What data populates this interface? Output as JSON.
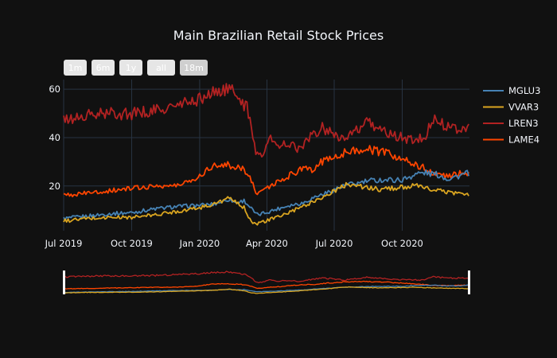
{
  "chart_data": {
    "type": "line",
    "title": "Main Brazilian Retail Stock Prices",
    "xlabel": "",
    "ylabel": "",
    "xlim": [
      "2019-07-01",
      "2020-12-31"
    ],
    "ylim": [
      1.5,
      64
    ],
    "yticks": [
      20,
      40,
      60
    ],
    "xticks": [
      {
        "date": "2019-07-01",
        "label": "Jul 2019"
      },
      {
        "date": "2019-10-01",
        "label": "Oct 2019"
      },
      {
        "date": "2020-01-01",
        "label": "Jan 2020"
      },
      {
        "date": "2020-04-01",
        "label": "Apr 2020"
      },
      {
        "date": "2020-07-01",
        "label": "Jul 2020"
      },
      {
        "date": "2020-10-01",
        "label": "Oct 2020"
      }
    ],
    "grid": true,
    "legend_position": "right",
    "range_selector": {
      "buttons": [
        "1m",
        "6m",
        "1y",
        "all",
        "18m"
      ],
      "active": 4
    },
    "range_slider": true,
    "series": [
      {
        "name": "MGLU3",
        "color": "#4682b4",
        "x": [
          "2019-07-01",
          "2019-08-01",
          "2019-09-01",
          "2019-10-01",
          "2019-11-01",
          "2019-12-01",
          "2020-01-01",
          "2020-01-20",
          "2020-02-10",
          "2020-02-20",
          "2020-03-01",
          "2020-03-10",
          "2020-03-18",
          "2020-03-25",
          "2020-04-15",
          "2020-05-01",
          "2020-05-20",
          "2020-06-05",
          "2020-06-20",
          "2020-07-05",
          "2020-07-20",
          "2020-08-01",
          "2020-08-15",
          "2020-09-01",
          "2020-10-01",
          "2020-10-20",
          "2020-11-01",
          "2020-11-20",
          "2020-12-01",
          "2020-12-15",
          "2020-12-31"
        ],
        "values": [
          6.5,
          7.5,
          8.5,
          9.0,
          10.5,
          11.5,
          12.0,
          12.5,
          14.5,
          13.0,
          14.0,
          11.0,
          8.0,
          8.5,
          10.5,
          12.0,
          13.0,
          15.5,
          17.0,
          19.0,
          20.5,
          21.0,
          22.0,
          22.5,
          22.5,
          25.0,
          25.5,
          24.5,
          23.0,
          24.0,
          25.5
        ]
      },
      {
        "name": "VVAR3",
        "color": "#daa520",
        "x": [
          "2019-07-01",
          "2019-08-01",
          "2019-09-01",
          "2019-10-01",
          "2019-11-01",
          "2019-12-01",
          "2020-01-01",
          "2020-01-20",
          "2020-02-10",
          "2020-02-20",
          "2020-03-01",
          "2020-03-10",
          "2020-03-18",
          "2020-03-25",
          "2020-04-10",
          "2020-05-01",
          "2020-05-20",
          "2020-06-05",
          "2020-06-20",
          "2020-07-05",
          "2020-07-20",
          "2020-08-10",
          "2020-09-01",
          "2020-10-01",
          "2020-10-20",
          "2020-11-10",
          "2020-12-01",
          "2020-12-31"
        ],
        "values": [
          5.5,
          6.5,
          7.0,
          7.0,
          8.0,
          9.5,
          11.0,
          12.5,
          15.0,
          13.0,
          11.0,
          6.0,
          4.0,
          5.0,
          6.5,
          9.0,
          11.5,
          14.0,
          16.0,
          18.5,
          21.0,
          19.5,
          18.5,
          19.5,
          20.0,
          18.5,
          17.5,
          16.5
        ]
      },
      {
        "name": "LREN3",
        "color": "#b22222",
        "x": [
          "2019-07-01",
          "2019-08-01",
          "2019-09-01",
          "2019-10-01",
          "2019-11-01",
          "2019-12-01",
          "2020-01-01",
          "2020-01-15",
          "2020-02-01",
          "2020-02-15",
          "2020-02-25",
          "2020-03-05",
          "2020-03-10",
          "2020-03-15",
          "2020-03-18",
          "2020-03-25",
          "2020-04-05",
          "2020-04-15",
          "2020-05-01",
          "2020-05-15",
          "2020-06-01",
          "2020-06-15",
          "2020-07-01",
          "2020-07-15",
          "2020-08-01",
          "2020-08-15",
          "2020-09-01",
          "2020-09-15",
          "2020-10-01",
          "2020-10-20",
          "2020-11-01",
          "2020-11-10",
          "2020-11-20",
          "2020-12-01",
          "2020-12-15",
          "2020-12-31"
        ],
        "values": [
          47,
          49,
          50,
          50,
          51,
          53,
          56,
          58,
          60,
          59,
          56,
          52,
          45,
          38,
          33,
          33,
          40,
          36,
          38,
          35,
          41,
          44,
          42,
          39,
          43,
          46,
          44,
          41,
          40,
          39,
          40,
          48,
          46,
          45,
          44,
          44
        ]
      },
      {
        "name": "LAME4",
        "color": "#ff4500",
        "x": [
          "2019-07-01",
          "2019-08-01",
          "2019-09-01",
          "2019-10-01",
          "2019-11-01",
          "2019-12-01",
          "2020-01-01",
          "2020-01-15",
          "2020-02-01",
          "2020-02-15",
          "2020-02-25",
          "2020-03-05",
          "2020-03-12",
          "2020-03-18",
          "2020-03-25",
          "2020-04-05",
          "2020-04-20",
          "2020-05-05",
          "2020-05-20",
          "2020-06-01",
          "2020-06-15",
          "2020-07-01",
          "2020-07-15",
          "2020-08-01",
          "2020-08-15",
          "2020-09-01",
          "2020-09-15",
          "2020-10-01",
          "2020-10-20",
          "2020-11-01",
          "2020-11-15",
          "2020-12-01",
          "2020-12-15",
          "2020-12-31"
        ],
        "values": [
          16,
          17,
          18,
          19,
          20,
          20,
          24,
          28,
          29,
          28,
          28,
          25,
          22,
          17,
          18,
          20,
          22,
          25,
          27,
          27,
          30,
          32,
          34,
          35,
          35,
          34,
          33,
          31,
          29,
          27,
          25,
          24,
          25,
          25.5
        ]
      }
    ]
  }
}
